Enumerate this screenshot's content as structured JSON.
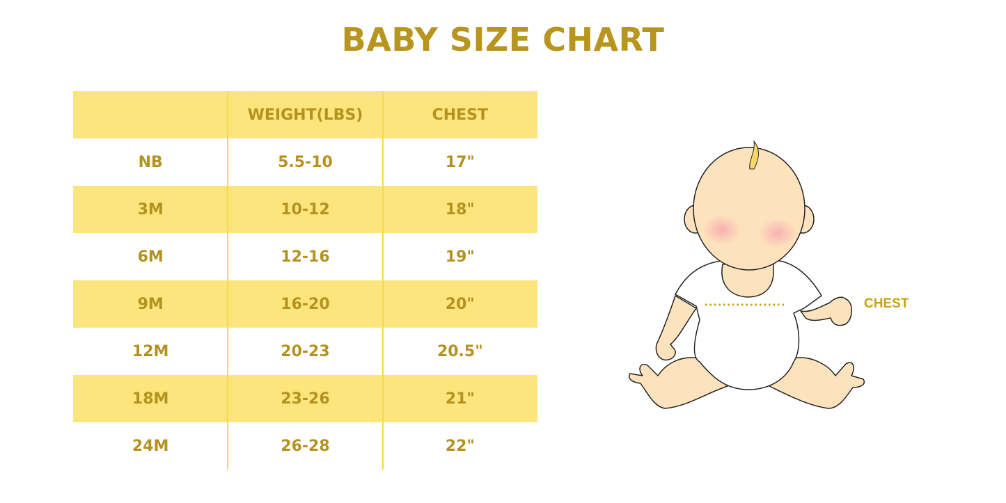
{
  "title": "BABY SIZE CHART",
  "table": {
    "headers": [
      "",
      "WEIGHT(LBS)",
      "CHEST"
    ],
    "rows": [
      [
        "NB",
        "5.5-10",
        "17\""
      ],
      [
        "3M",
        "10-12",
        "18\""
      ],
      [
        "6M",
        "12-16",
        "19\""
      ],
      [
        "9M",
        "16-20",
        "20\""
      ],
      [
        "12M",
        "20-23",
        "20.5\""
      ],
      [
        "18M",
        "23-26",
        "21\""
      ],
      [
        "24M",
        "26-28",
        "22\""
      ]
    ]
  },
  "illustration": {
    "chest_label": "CHEST"
  },
  "colors": {
    "accent_text": "#b5921f",
    "row_highlight": "#fbe57c",
    "divider": "#fad84a"
  }
}
